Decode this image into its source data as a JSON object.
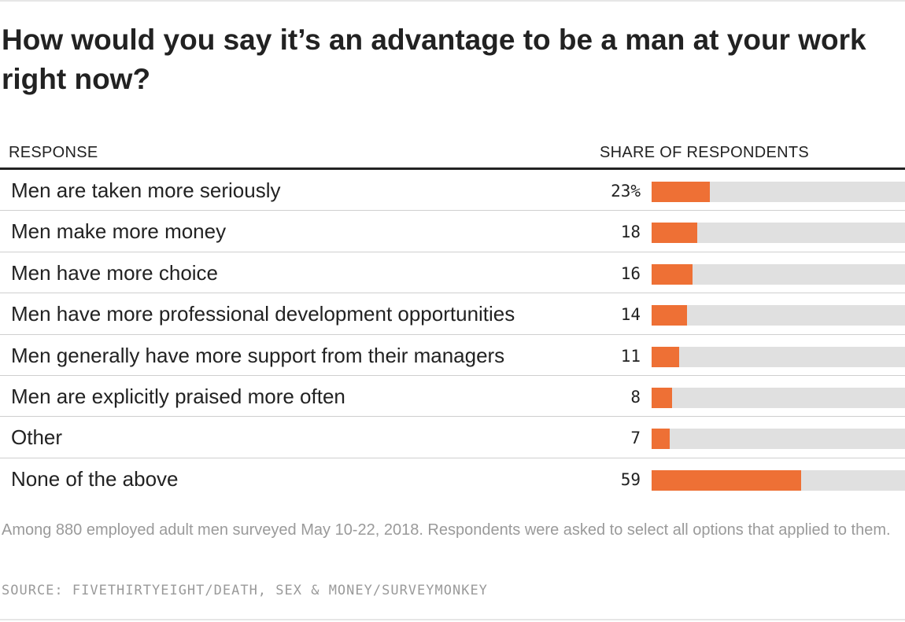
{
  "title": "How would you say it’s an advantage to be a man at your work right now?",
  "columns": {
    "response": "RESPONSE",
    "share": "SHARE OF RESPONDENTS"
  },
  "chart_data": {
    "type": "bar",
    "orientation": "horizontal",
    "title": "How would you say it’s an advantage to be a man at your work right now?",
    "categories": [
      "Men are taken more seriously",
      "Men make more money",
      "Men have more choice",
      "Men have more professional development opportunities",
      "Men generally have more support from their managers",
      "Men are explicitly praised more often",
      "Other",
      "None of the above"
    ],
    "values": [
      23,
      18,
      16,
      14,
      11,
      8,
      7,
      59
    ],
    "value_labels": [
      "23%",
      "18",
      "16",
      "14",
      "11",
      "8",
      "7",
      "59"
    ],
    "xlim": [
      0,
      100
    ],
    "unit": "%",
    "bar_color": "#ee7035",
    "track_color": "#e0e0e0"
  },
  "footnote": "Among 880 employed adult men surveyed May 10-22, 2018. Respondents were asked to select all options that applied to them.",
  "source": "SOURCE: FIVETHIRTYEIGHT/DEATH, SEX & MONEY/SURVEYMONKEY"
}
